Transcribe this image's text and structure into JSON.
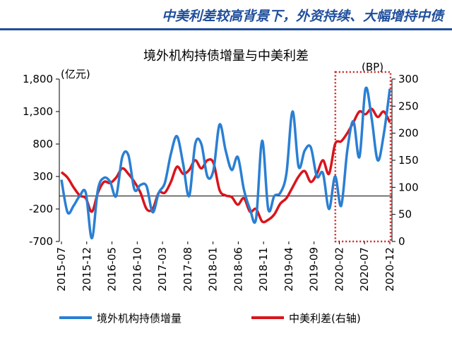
{
  "banner": {
    "title": "中美利差较高背景下，外资持续、大幅增持中债"
  },
  "colors": {
    "banner": "#1f4e9b",
    "holdings": "#2a7fd3",
    "spread": "#d9141c",
    "highlight": "#cc2222"
  },
  "chart_data": {
    "type": "line",
    "title": "境外机构持债增量与中美利差",
    "left_unit": "(亿元)",
    "right_unit": "(BP)",
    "x_tick_labels": [
      "2015-07",
      "2015-12",
      "2016-05",
      "2016-10",
      "2017-03",
      "2017-08",
      "2018-01",
      "2018-06",
      "2018-11",
      "2019-04",
      "2019-09",
      "2020-02",
      "2020-07",
      "2020-12"
    ],
    "y_left": {
      "min": -700,
      "max": 1800,
      "ticks": [
        -700,
        -200,
        300,
        800,
        1300,
        1800
      ],
      "tick_labels": [
        "-700",
        "-200",
        "300",
        "800",
        "1,300",
        "1,800"
      ]
    },
    "y_right": {
      "min": 0,
      "max": 300,
      "ticks": [
        0,
        50,
        100,
        150,
        200,
        250,
        300
      ],
      "tick_labels": [
        "0",
        "50",
        "100",
        "150",
        "200",
        "250",
        "300"
      ]
    },
    "highlight_range": [
      "2020-02",
      "2020-12"
    ],
    "series": [
      {
        "name": "境外机构持债增量",
        "axis": "left",
        "values": [
          250,
          -250,
          -150,
          0,
          50,
          -650,
          100,
          280,
          220,
          0,
          600,
          630,
          100,
          170,
          150,
          -250,
          50,
          200,
          650,
          920,
          500,
          0,
          800,
          800,
          300,
          400,
          1100,
          700,
          400,
          600,
          100,
          -200,
          -350,
          850,
          -200,
          0,
          50,
          350,
          1300,
          450,
          700,
          750,
          300,
          350,
          -200,
          300,
          -150,
          700,
          1150,
          600,
          1650,
          1200,
          550,
          950,
          1650
        ]
      },
      {
        "name": "中美利差(右轴)",
        "axis": "right",
        "values": [
          128,
          118,
          100,
          85,
          80,
          55,
          90,
          110,
          108,
          118,
          135,
          125,
          110,
          90,
          60,
          60,
          90,
          90,
          110,
          138,
          125,
          132,
          150,
          135,
          150,
          145,
          95,
          85,
          82,
          68,
          80,
          55,
          60,
          37,
          40,
          50,
          70,
          80,
          100,
          120,
          130,
          110,
          125,
          150,
          125,
          180,
          185,
          200,
          220,
          240,
          235,
          245,
          230,
          240,
          220
        ]
      }
    ]
  }
}
